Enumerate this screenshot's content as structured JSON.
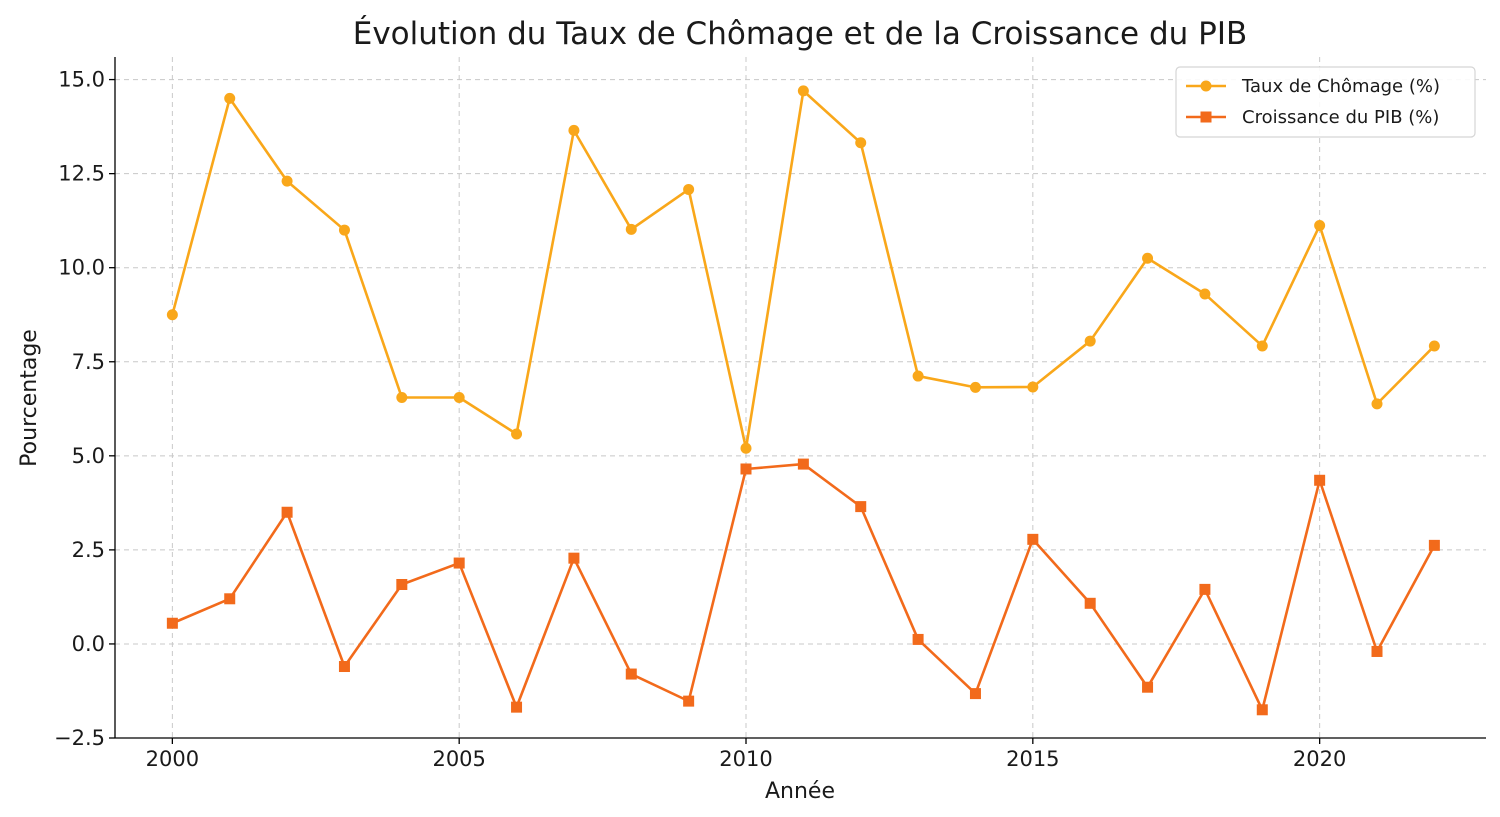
{
  "chart_data": {
    "type": "line",
    "title": "Évolution du Taux de Chômage et de la Croissance du PIB",
    "xlabel": "Année",
    "ylabel": "Pourcentage",
    "xlim": [
      1999,
      2022.9
    ],
    "ylim": [
      -2.5,
      15.6
    ],
    "xticks": [
      2000,
      2005,
      2010,
      2015,
      2020
    ],
    "yticks": [
      -2.5,
      0.0,
      2.5,
      5.0,
      7.5,
      10.0,
      12.5,
      15.0
    ],
    "ytick_labels": [
      "−2.5",
      "0.0",
      "2.5",
      "5.0",
      "7.5",
      "10.0",
      "12.5",
      "15.0"
    ],
    "grid": true,
    "legend_position": "top-right",
    "x": [
      2000,
      2001,
      2002,
      2003,
      2004,
      2005,
      2006,
      2007,
      2008,
      2009,
      2010,
      2011,
      2012,
      2013,
      2014,
      2015,
      2016,
      2017,
      2018,
      2019,
      2020,
      2021,
      2022
    ],
    "series": [
      {
        "name": "Taux de Chômage (%)",
        "color": "#f9a71a",
        "marker": "circle",
        "values": [
          8.75,
          14.5,
          12.3,
          11.0,
          6.55,
          6.55,
          5.58,
          13.65,
          11.02,
          12.08,
          5.2,
          14.7,
          13.32,
          7.12,
          6.82,
          6.83,
          8.05,
          10.25,
          9.3,
          7.92,
          11.12,
          6.38,
          7.92
        ]
      },
      {
        "name": "Croissance du PIB (%)",
        "color": "#f26a1b",
        "marker": "square",
        "values": [
          0.55,
          1.2,
          3.5,
          -0.6,
          1.58,
          2.15,
          -1.68,
          2.28,
          -0.8,
          -1.52,
          4.65,
          4.78,
          3.65,
          0.12,
          -1.32,
          2.78,
          1.08,
          -1.15,
          1.45,
          -1.75,
          4.35,
          -0.2,
          2.62
        ]
      }
    ]
  }
}
